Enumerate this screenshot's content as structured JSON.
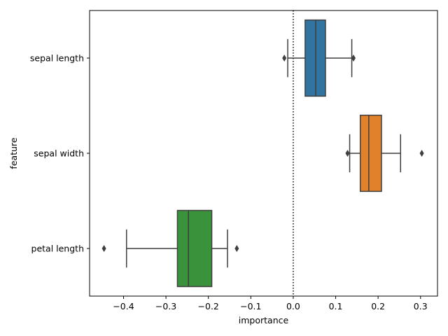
{
  "chart_data": {
    "type": "box",
    "orientation": "horizontal",
    "xlabel": "importance",
    "ylabel": "feature",
    "xlim": [
      -0.48,
      0.34
    ],
    "xticks": [
      -0.4,
      -0.3,
      -0.2,
      -0.1,
      0.0,
      0.1,
      0.2,
      0.3
    ],
    "xtick_labels": [
      "−0.4",
      "−0.3",
      "−0.2",
      "−0.1",
      "0.0",
      "0.1",
      "0.2",
      "0.3"
    ],
    "reference_line": {
      "x": 0.0,
      "style": "dotted",
      "color": "#000000"
    },
    "categories": [
      "sepal length",
      "sepal width",
      "petal length"
    ],
    "boxes": [
      {
        "label": "sepal length",
        "color": "#3274a1",
        "whisker_low": -0.013,
        "q1": 0.028,
        "median": 0.053,
        "q3": 0.076,
        "whisker_high": 0.138,
        "outliers": [
          -0.021,
          0.142
        ]
      },
      {
        "label": "sepal width",
        "color": "#e1812c",
        "whisker_low": 0.133,
        "q1": 0.158,
        "median": 0.178,
        "q3": 0.208,
        "whisker_high": 0.253,
        "outliers": [
          0.128,
          0.303
        ]
      },
      {
        "label": "petal length",
        "color": "#3a923a",
        "whisker_low": -0.393,
        "q1": -0.273,
        "median": -0.247,
        "q3": -0.192,
        "whisker_high": -0.155,
        "outliers": [
          -0.446,
          -0.133
        ]
      }
    ]
  }
}
